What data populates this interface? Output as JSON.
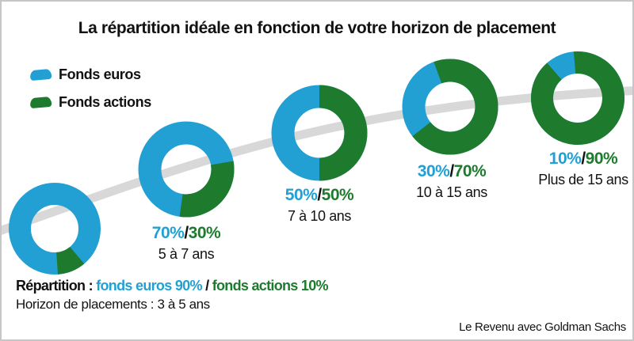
{
  "title": "La répartition idéale en fonction de votre horizon de placement",
  "legend": {
    "euros": "Fonds euros",
    "actions": "Fonds actions"
  },
  "colors": {
    "euros": "#22a0d4",
    "actions": "#1e7b2e",
    "curve": "#d8d8d8",
    "text": "#121212"
  },
  "slash": "/",
  "chart_data": {
    "type": "pie",
    "subtype": "donut-series-on-trend-curve",
    "title": "La répartition idéale en fonction de votre horizon de placement",
    "series": [
      "Fonds euros",
      "Fonds actions"
    ],
    "legend_position": "top-left",
    "donuts": [
      {
        "horizon": "3 à 5 ans",
        "euros_pct": 90,
        "actions_pct": 10,
        "euros_label": "90%",
        "actions_label": "10%",
        "inline_label": false
      },
      {
        "horizon": "5 à 7 ans",
        "euros_pct": 70,
        "actions_pct": 30,
        "euros_label": "70%",
        "actions_label": "30%",
        "inline_label": true
      },
      {
        "horizon": "7 à 10 ans",
        "euros_pct": 50,
        "actions_pct": 50,
        "euros_label": "50%",
        "actions_label": "50%",
        "inline_label": true
      },
      {
        "horizon": "10 à 15 ans",
        "euros_pct": 30,
        "actions_pct": 70,
        "euros_label": "30%",
        "actions_label": "70%",
        "inline_label": true
      },
      {
        "horizon": "Plus de 15 ans",
        "euros_pct": 10,
        "actions_pct": 90,
        "euros_label": "10%",
        "actions_label": "90%",
        "inline_label": true
      }
    ]
  },
  "footer": {
    "repartition_prefix": "Répartition :",
    "repartition_euros": "fonds euros 90%",
    "separator": "/",
    "repartition_actions": "fonds actions 10%",
    "horizon_line": "Horizon de placements : 3 à 5 ans",
    "credit": "Le Revenu avec Goldman Sachs"
  }
}
